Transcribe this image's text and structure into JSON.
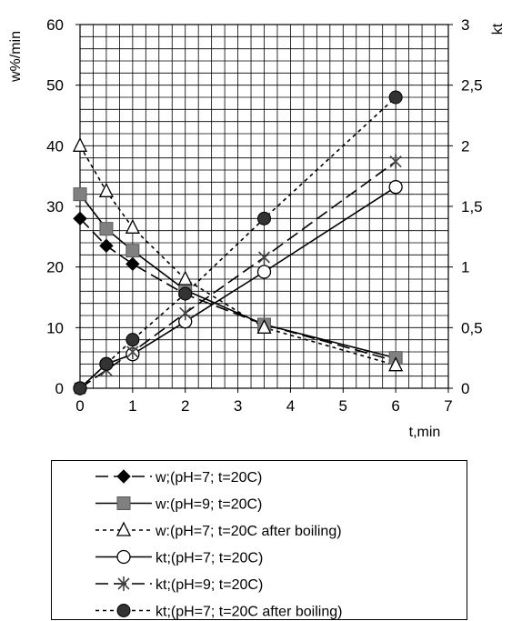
{
  "chart_data": {
    "type": "line",
    "xlabel": "t,min",
    "ylabel": "w%/min",
    "y2label": "kt",
    "xlim": [
      0,
      7
    ],
    "ylim": [
      0,
      60
    ],
    "y2lim": [
      0,
      3
    ],
    "x_ticks": [
      "0",
      "1",
      "2",
      "3",
      "4",
      "5",
      "6",
      "7"
    ],
    "y_ticks": [
      "0",
      "10",
      "20",
      "30",
      "40",
      "50",
      "60"
    ],
    "y2_ticks": [
      "0",
      "0,5",
      "1",
      "1,5",
      "2",
      "2,5",
      "3"
    ],
    "grid": true,
    "legend_position": "bottom",
    "series": [
      {
        "name": "w;(pH=7; t=20C)",
        "axis": "left",
        "marker": "diamond",
        "dash": "long-dash",
        "color": "#000000",
        "x": [
          0,
          0.5,
          1,
          2,
          3.5,
          6
        ],
        "y": [
          28,
          23.5,
          20.5,
          15.5,
          10.5,
          4.5
        ]
      },
      {
        "name": "w:(pH=9; t=20C)",
        "axis": "left",
        "marker": "square",
        "dash": "solid",
        "color": "#808080",
        "x": [
          0,
          0.5,
          1,
          2,
          3.5,
          6
        ],
        "y": [
          32,
          26.3,
          22.7,
          16.2,
          10.5,
          5
        ]
      },
      {
        "name": "w:(pH=7; t=20C after boiling)",
        "axis": "left",
        "marker": "triangle",
        "dash": "dotted",
        "color": "#000000",
        "x": [
          0,
          0.5,
          1,
          2,
          3.5,
          6
        ],
        "y": [
          40,
          32.5,
          26.5,
          18,
          10,
          3.8
        ]
      },
      {
        "name": "kt;(pH=7; t=20C)",
        "axis": "right",
        "marker": "circle-open",
        "dash": "solid",
        "color": "#000000",
        "x": [
          0,
          0.5,
          1,
          2,
          3.5,
          6
        ],
        "y": [
          0,
          0.2,
          0.28,
          0.55,
          0.96,
          1.66
        ]
      },
      {
        "name": "kt;(pH=9; t=20C)",
        "axis": "right",
        "marker": "star",
        "dash": "long-dash",
        "color": "#000000",
        "x": [
          0,
          0.5,
          1,
          2,
          3.5,
          6
        ],
        "y": [
          0,
          0.15,
          0.3,
          0.62,
          1.08,
          1.87
        ]
      },
      {
        "name": "kt;(pH=7; t=20C after boiling)",
        "axis": "right",
        "marker": "circle-filled",
        "dash": "dotted",
        "color": "#000000",
        "x": [
          0,
          0.5,
          1,
          2,
          3.5,
          6
        ],
        "y": [
          0,
          0.2,
          0.4,
          0.78,
          1.4,
          2.4
        ]
      }
    ]
  }
}
